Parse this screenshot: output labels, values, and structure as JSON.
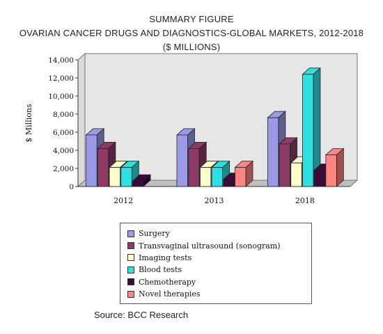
{
  "header": {
    "line1": "SUMMARY FIGURE",
    "line2": "OVARIAN CANCER DRUGS AND DIAGNOSTICS-GLOBAL MARKETS, 2012-2018",
    "line3": "($ MILLIONS)"
  },
  "source": "Source: BCC Research",
  "chart_data": {
    "type": "bar",
    "style": "3d-clustered",
    "title": "SUMMARY FIGURE OVARIAN CANCER DRUGS AND DIAGNOSTICS-GLOBAL MARKETS, 2012-2018 ($ MILLIONS)",
    "ylabel": "$ Millions",
    "xlabel": "",
    "ylim": [
      0,
      14000
    ],
    "yticks": [
      0,
      2000,
      4000,
      6000,
      8000,
      10000,
      12000,
      14000
    ],
    "ytick_labels": [
      "0",
      "2,000",
      "4,000",
      "6,000",
      "8,000",
      "10,000",
      "12,000",
      "14,000"
    ],
    "categories": [
      "2012",
      "2013",
      "2018"
    ],
    "legend_position": "bottom",
    "grid": false,
    "series": [
      {
        "name": "Surgery",
        "color": "#9a9ae6",
        "values": [
          5700,
          5700,
          7600
        ]
      },
      {
        "name": "Transvaginal ultrasound (sonogram)",
        "color": "#8e3a67",
        "values": [
          4200,
          4200,
          4700
        ]
      },
      {
        "name": "Imaging tests",
        "color": "#fdfccb",
        "values": [
          2100,
          2100,
          2600
        ]
      },
      {
        "name": "Blood tests",
        "color": "#2fe0e3",
        "values": [
          2100,
          2100,
          12400
        ]
      },
      {
        "name": "Chemotherapy",
        "color": "#3a0a3a",
        "values": [
          600,
          800,
          1800
        ]
      },
      {
        "name": "Novel therapies",
        "color": "#fa8582",
        "values": [
          0,
          2100,
          3500
        ]
      }
    ]
  }
}
